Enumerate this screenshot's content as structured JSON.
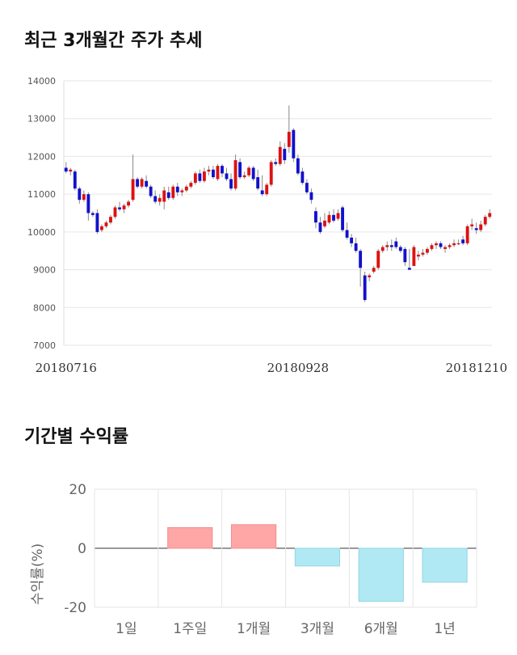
{
  "titles": {
    "price_trend": "최근 3개월간 주가 추세",
    "returns": "기간별 수익률"
  },
  "colors": {
    "up": "#dd1111",
    "down": "#1111cc",
    "positive_bar": "#ffa6a6",
    "negative_bar": "#b0e9f3",
    "grid": "#e6e6e6"
  },
  "chart_data": [
    {
      "type": "candlestick",
      "title": "",
      "ylim": [
        7000,
        14000
      ],
      "y_ticks": [
        "14000",
        "13000",
        "12000",
        "11000",
        "10000",
        "9000",
        "8000",
        "7000"
      ],
      "x_tick_labels": [
        "20180716",
        "20180928",
        "20181210"
      ],
      "x_tick_index": [
        0,
        52,
        108
      ],
      "ohlc": [
        [
          11700,
          11850,
          11550,
          11600
        ],
        [
          11600,
          11700,
          11500,
          11650
        ],
        [
          11600,
          11650,
          11100,
          11150
        ],
        [
          11150,
          11200,
          10750,
          10850
        ],
        [
          10850,
          11100,
          10800,
          11000
        ],
        [
          11000,
          11050,
          10300,
          10500
        ],
        [
          10500,
          10550,
          10400,
          10450
        ],
        [
          10500,
          10600,
          9950,
          10000
        ],
        [
          10050,
          10200,
          10000,
          10150
        ],
        [
          10150,
          10300,
          10100,
          10250
        ],
        [
          10250,
          10450,
          10200,
          10400
        ],
        [
          10400,
          10700,
          10350,
          10650
        ],
        [
          10650,
          10800,
          10550,
          10600
        ],
        [
          10600,
          10750,
          10500,
          10700
        ],
        [
          10700,
          10850,
          10650,
          10800
        ],
        [
          10850,
          12050,
          10800,
          11400
        ],
        [
          11400,
          11450,
          11150,
          11200
        ],
        [
          11200,
          11450,
          11150,
          11400
        ],
        [
          11350,
          11500,
          11150,
          11200
        ],
        [
          11200,
          11250,
          10900,
          10950
        ],
        [
          10950,
          11100,
          10750,
          10800
        ],
        [
          10800,
          11000,
          10700,
          10900
        ],
        [
          10800,
          11200,
          10600,
          11100
        ],
        [
          11050,
          11200,
          10850,
          10900
        ],
        [
          10900,
          11250,
          10850,
          11200
        ],
        [
          11200,
          11300,
          10950,
          11050
        ],
        [
          11050,
          11150,
          10950,
          11100
        ],
        [
          11100,
          11250,
          11050,
          11200
        ],
        [
          11200,
          11350,
          11150,
          11300
        ],
        [
          11300,
          11600,
          11250,
          11550
        ],
        [
          11550,
          11650,
          11300,
          11350
        ],
        [
          11350,
          11700,
          11300,
          11600
        ],
        [
          11600,
          11750,
          11500,
          11650
        ],
        [
          11650,
          11750,
          11400,
          11450
        ],
        [
          11400,
          11800,
          11350,
          11750
        ],
        [
          11750,
          11800,
          11450,
          11550
        ],
        [
          11550,
          11700,
          11350,
          11400
        ],
        [
          11400,
          11550,
          11100,
          11150
        ],
        [
          11150,
          12050,
          11100,
          11900
        ],
        [
          11850,
          11950,
          11400,
          11450
        ],
        [
          11450,
          11600,
          11400,
          11500
        ],
        [
          11500,
          11750,
          11450,
          11700
        ],
        [
          11700,
          11750,
          11350,
          11400
        ],
        [
          11450,
          11650,
          11100,
          11150
        ],
        [
          11100,
          11500,
          10950,
          11000
        ],
        [
          11000,
          11300,
          10950,
          11250
        ],
        [
          11250,
          11900,
          11200,
          11850
        ],
        [
          11850,
          11950,
          11750,
          11800
        ],
        [
          11800,
          12400,
          11750,
          12250
        ],
        [
          12200,
          12350,
          11800,
          11900
        ],
        [
          12250,
          13350,
          12100,
          12650
        ],
        [
          12700,
          12750,
          11850,
          11950
        ],
        [
          11950,
          12050,
          11500,
          11550
        ],
        [
          11600,
          11700,
          11250,
          11300
        ],
        [
          11300,
          11400,
          11000,
          11050
        ],
        [
          11050,
          11150,
          10750,
          10850
        ],
        [
          10550,
          10650,
          10100,
          10250
        ],
        [
          10250,
          10400,
          9950,
          10000
        ],
        [
          10150,
          10500,
          10100,
          10300
        ],
        [
          10250,
          10550,
          10200,
          10450
        ],
        [
          10450,
          10600,
          10250,
          10300
        ],
        [
          10350,
          10600,
          10300,
          10500
        ],
        [
          10650,
          10700,
          10000,
          10050
        ],
        [
          10050,
          10250,
          9800,
          9850
        ],
        [
          9850,
          9950,
          9600,
          9700
        ],
        [
          9700,
          9850,
          9450,
          9500
        ],
        [
          9500,
          9550,
          8550,
          9050
        ],
        [
          8850,
          8950,
          8150,
          8200
        ],
        [
          8800,
          8900,
          8700,
          8850
        ],
        [
          8950,
          9100,
          8900,
          9050
        ],
        [
          9050,
          9550,
          9000,
          9500
        ],
        [
          9500,
          9650,
          9450,
          9600
        ],
        [
          9600,
          9750,
          9500,
          9650
        ],
        [
          9650,
          9800,
          9500,
          9600
        ],
        [
          9750,
          9850,
          9550,
          9600
        ],
        [
          9600,
          9650,
          9450,
          9500
        ],
        [
          9550,
          9600,
          9100,
          9200
        ],
        [
          9050,
          9550,
          9000,
          9000
        ],
        [
          9100,
          9650,
          9100,
          9600
        ],
        [
          9350,
          9500,
          9250,
          9400
        ],
        [
          9400,
          9550,
          9350,
          9450
        ],
        [
          9450,
          9600,
          9400,
          9550
        ],
        [
          9550,
          9700,
          9500,
          9650
        ],
        [
          9650,
          9750,
          9550,
          9700
        ],
        [
          9700,
          9750,
          9550,
          9600
        ],
        [
          9550,
          9650,
          9450,
          9600
        ],
        [
          9600,
          9700,
          9550,
          9650
        ],
        [
          9650,
          9800,
          9600,
          9700
        ],
        [
          9700,
          9800,
          9650,
          9700
        ],
        [
          9800,
          9900,
          9650,
          9700
        ],
        [
          9700,
          10200,
          9650,
          10150
        ],
        [
          10150,
          10350,
          10050,
          10200
        ],
        [
          10100,
          10250,
          9950,
          10050
        ],
        [
          10050,
          10300,
          10000,
          10200
        ],
        [
          10200,
          10450,
          10150,
          10400
        ],
        [
          10400,
          10600,
          10350,
          10500
        ]
      ]
    },
    {
      "type": "bar",
      "title": "",
      "ylabel": "수익률(%)",
      "ylim": [
        -20,
        20
      ],
      "y_ticks": [
        "20",
        "0",
        "-20"
      ],
      "categories": [
        "1일",
        "1주일",
        "1개월",
        "3개월",
        "6개월",
        "1년"
      ],
      "values": [
        0,
        7,
        8,
        -6,
        -18,
        -11.5
      ]
    }
  ]
}
